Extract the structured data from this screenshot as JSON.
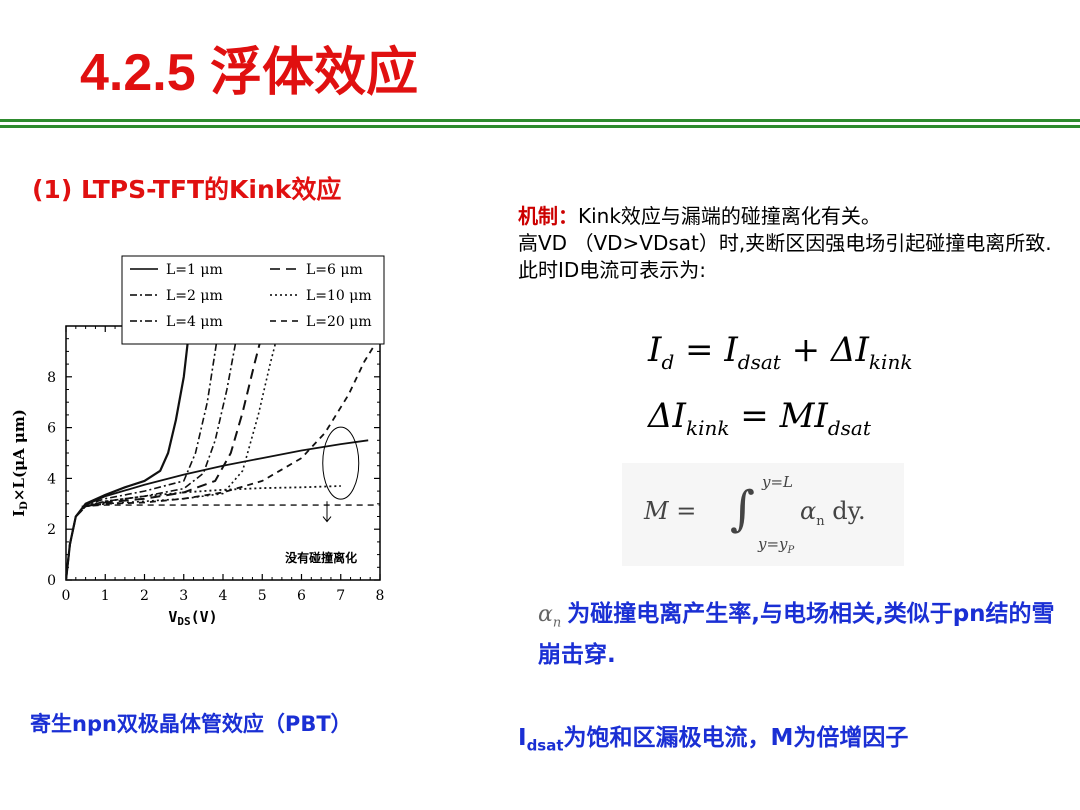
{
  "title": "4.2.5 浮体效应",
  "section1": {
    "heading": "(1) LTPS-TFT的Kink效应"
  },
  "mechanism": {
    "label": "机制：",
    "line1": "Kink效应与漏端的碰撞离化有关。",
    "line2": " 高VD （VD>VDsat）时,夹断区因强电场引起碰撞电离所致. 此时ID电流可表示为:"
  },
  "equations": {
    "eq1": {
      "lhs": "I",
      "lhs_sub": "d",
      "eq": " = ",
      "t1": "I",
      "t1_sub": "dsat",
      "plus": " + ",
      "t2": "ΔI",
      "t2_sub": "kink"
    },
    "eq2": {
      "lhs": "ΔI",
      "lhs_sub": "kink",
      "eq": " = ",
      "rhs": "MI",
      "rhs_sub": "dsat"
    },
    "eq3": {
      "lhs": "M = ",
      "upper": "y=L",
      "lower": "y=y",
      "lower_sub": "P",
      "alpha": "α",
      "alpha_sub": "n",
      "dy": " dy."
    }
  },
  "alpha_note": {
    "symbol": "α",
    "symbol_sub": "n",
    "text": "为碰撞电离产生率,与电场相关,类似于pn结的雪崩击穿."
  },
  "pbt": "寄生npn双极晶体管效应（PBT）",
  "idsat_note": {
    "I": "I",
    "sub": "dsat",
    "text": "为饱和区漏极电流，M为倍增因子"
  },
  "colors": {
    "title": "#e01010",
    "rule": "#2e8b2e",
    "blue": "#1a2fd4"
  },
  "chart_data": {
    "type": "line",
    "xlabel": "VDS(V)",
    "xlabel_main": "V",
    "xlabel_sub": "DS",
    "xlabel_unit": "(V)",
    "ylabel": "ID×L(μA μm)",
    "ylabel_main": "I",
    "ylabel_sub": "D",
    "ylabel_rest": "×L(μA μm)",
    "xlim": [
      0,
      8
    ],
    "ylim": [
      0,
      10
    ],
    "xticks": [
      "0",
      "1",
      "2",
      "3",
      "4",
      "5",
      "6",
      "7",
      "8"
    ],
    "yticks": [
      "0",
      "2",
      "4",
      "6",
      "8"
    ],
    "annotation": "没有碰撞离化",
    "legend_position": "top",
    "series": [
      {
        "name": "L=1 μm",
        "dash": "solid",
        "width": 2.2,
        "points": [
          [
            0,
            0
          ],
          [
            0.1,
            1.4
          ],
          [
            0.25,
            2.5
          ],
          [
            0.5,
            3.0
          ],
          [
            1.0,
            3.35
          ],
          [
            1.5,
            3.65
          ],
          [
            2.0,
            3.9
          ],
          [
            2.4,
            4.3
          ],
          [
            2.6,
            5.0
          ],
          [
            2.8,
            6.3
          ],
          [
            3.0,
            8.0
          ],
          [
            3.15,
            10.0
          ]
        ]
      },
      {
        "name": "L=2 μm",
        "dash": "dash-dot",
        "width": 1.6,
        "points": [
          [
            0,
            0
          ],
          [
            0.1,
            1.4
          ],
          [
            0.25,
            2.5
          ],
          [
            0.5,
            2.95
          ],
          [
            1.0,
            3.2
          ],
          [
            2.0,
            3.5
          ],
          [
            3.0,
            3.9
          ],
          [
            3.3,
            5.0
          ],
          [
            3.6,
            7.0
          ],
          [
            3.9,
            10.0
          ]
        ]
      },
      {
        "name": "L=4 μm",
        "dash": "dash-dot",
        "width": 1.6,
        "points": [
          [
            0,
            0
          ],
          [
            0.1,
            1.4
          ],
          [
            0.25,
            2.5
          ],
          [
            0.5,
            2.9
          ],
          [
            1.0,
            3.1
          ],
          [
            2.0,
            3.3
          ],
          [
            3.0,
            3.6
          ],
          [
            3.5,
            4.2
          ],
          [
            3.8,
            5.5
          ],
          [
            4.1,
            7.5
          ],
          [
            4.4,
            10.0
          ]
        ]
      },
      {
        "name": "L=6 μm",
        "dash": "long-dash",
        "width": 2.0,
        "points": [
          [
            0,
            0
          ],
          [
            0.1,
            1.4
          ],
          [
            0.25,
            2.5
          ],
          [
            0.5,
            2.9
          ],
          [
            1.0,
            3.05
          ],
          [
            2.0,
            3.2
          ],
          [
            3.0,
            3.45
          ],
          [
            3.8,
            3.9
          ],
          [
            4.2,
            5.0
          ],
          [
            4.5,
            6.6
          ],
          [
            4.8,
            8.5
          ],
          [
            5.05,
            10.0
          ]
        ]
      },
      {
        "name": "L=10 μm",
        "dash": "dotted",
        "width": 1.6,
        "points": [
          [
            0,
            0
          ],
          [
            0.1,
            1.4
          ],
          [
            0.25,
            2.5
          ],
          [
            0.5,
            2.9
          ],
          [
            1.0,
            3.0
          ],
          [
            2.0,
            3.1
          ],
          [
            3.0,
            3.2
          ],
          [
            4.0,
            3.4
          ],
          [
            4.5,
            4.3
          ],
          [
            4.9,
            6.5
          ],
          [
            5.2,
            8.5
          ],
          [
            5.45,
            10.0
          ]
        ]
      },
      {
        "name": "L=20 μm",
        "dash": "short-dash",
        "width": 1.8,
        "points": [
          [
            0,
            0
          ],
          [
            0.1,
            1.4
          ],
          [
            0.25,
            2.5
          ],
          [
            0.5,
            2.9
          ],
          [
            1.0,
            3.0
          ],
          [
            2.0,
            3.05
          ],
          [
            3.0,
            3.2
          ],
          [
            4.0,
            3.45
          ],
          [
            5.0,
            3.9
          ],
          [
            6.0,
            4.8
          ],
          [
            6.6,
            5.8
          ],
          [
            7.2,
            7.3
          ],
          [
            7.6,
            8.6
          ],
          [
            8.0,
            9.6
          ]
        ]
      },
      {
        "name": "",
        "dash": "solid",
        "width": 1.8,
        "points": [
          [
            0.5,
            2.95
          ],
          [
            1.0,
            3.3
          ],
          [
            2.0,
            3.75
          ],
          [
            3.0,
            4.15
          ],
          [
            4.0,
            4.5
          ],
          [
            5.0,
            4.8
          ],
          [
            6.0,
            5.1
          ],
          [
            7.0,
            5.35
          ],
          [
            7.7,
            5.5
          ]
        ]
      },
      {
        "name": "",
        "dash": "dotted",
        "width": 1.8,
        "points": [
          [
            0.5,
            2.9
          ],
          [
            1.0,
            3.1
          ],
          [
            2.0,
            3.3
          ],
          [
            3.0,
            3.45
          ],
          [
            4.0,
            3.55
          ],
          [
            5.0,
            3.62
          ],
          [
            6.0,
            3.65
          ],
          [
            7.0,
            3.7
          ]
        ]
      },
      {
        "name": "",
        "dash": "short-dash",
        "width": 1.4,
        "points": [
          [
            0.4,
            2.9
          ],
          [
            1.0,
            2.95
          ],
          [
            2.0,
            2.95
          ],
          [
            4.0,
            2.95
          ],
          [
            6.0,
            2.95
          ],
          [
            8.0,
            2.95
          ]
        ]
      }
    ]
  }
}
